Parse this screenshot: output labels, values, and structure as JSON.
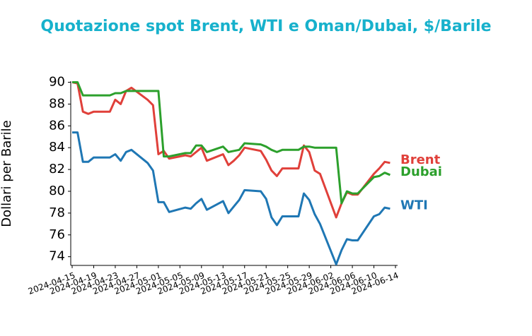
{
  "chart_data": {
    "type": "line",
    "title": "Quotazione spot Brent, WTI e Oman/Dubai, $/Barile",
    "y_label": "Dollari per Barile",
    "x": [
      "2024-04-15",
      "2024-04-16",
      "2024-04-17",
      "2024-04-18",
      "2024-04-19",
      "2024-04-22",
      "2024-04-23",
      "2024-04-24",
      "2024-04-25",
      "2024-04-26",
      "2024-04-29",
      "2024-04-30",
      "2024-05-01",
      "2024-05-02",
      "2024-05-03",
      "2024-05-06",
      "2024-05-07",
      "2024-05-08",
      "2024-05-09",
      "2024-05-10",
      "2024-05-13",
      "2024-05-14",
      "2024-05-15",
      "2024-05-16",
      "2024-05-17",
      "2024-05-20",
      "2024-05-21",
      "2024-05-22",
      "2024-05-23",
      "2024-05-24",
      "2024-05-27",
      "2024-05-28",
      "2024-05-29",
      "2024-05-30",
      "2024-05-31",
      "2024-06-03",
      "2024-06-04",
      "2024-06-05",
      "2024-06-06",
      "2024-06-07",
      "2024-06-10",
      "2024-06-11",
      "2024-06-12",
      "2024-06-13"
    ],
    "series": [
      {
        "name": "Brent",
        "color": "#e0403a",
        "values": [
          90,
          89.9,
          87.3,
          87.1,
          87.3,
          87.3,
          88.4,
          88,
          89.2,
          89.5,
          88.4,
          87.9,
          83.4,
          83.7,
          83,
          83.3,
          83.2,
          83.6,
          84,
          82.8,
          83.4,
          82.4,
          82.8,
          83.3,
          84,
          83.7,
          82.9,
          81.9,
          81.4,
          82.1,
          82.1,
          84.2,
          83.6,
          81.9,
          81.6,
          77.6,
          78.9,
          79.9,
          79.7,
          79.7,
          81.6,
          82.1,
          82.7,
          82.6
        ]
      },
      {
        "name": "Dubai",
        "color": "#2ca02c",
        "values": [
          90,
          90,
          88.8,
          88.8,
          88.8,
          88.8,
          89,
          89,
          89.2,
          89.2,
          89.2,
          89.2,
          89.2,
          83.2,
          83.2,
          83.5,
          83.5,
          84.2,
          84.2,
          83.6,
          84.1,
          83.6,
          83.7,
          83.8,
          84.4,
          84.3,
          84.1,
          83.8,
          83.6,
          83.8,
          83.8,
          84.1,
          84.1,
          84,
          84,
          84,
          78.9,
          80,
          79.8,
          79.8,
          81.3,
          81.4,
          81.7,
          81.5
        ]
      },
      {
        "name": "WTI",
        "color": "#1f77b4",
        "values": [
          85.4,
          85.4,
          82.7,
          82.7,
          83.1,
          83.1,
          83.4,
          82.8,
          83.6,
          83.8,
          82.6,
          81.9,
          79,
          79,
          78.1,
          78.5,
          78.4,
          78.9,
          79.3,
          78.3,
          79.1,
          78,
          78.6,
          79.2,
          80.1,
          80,
          79.3,
          77.6,
          76.9,
          77.7,
          77.7,
          79.8,
          79.2,
          77.9,
          77,
          73.3,
          74.6,
          75.6,
          75.5,
          75.5,
          77.7,
          77.9,
          78.5,
          78.4
        ]
      }
    ],
    "xlim": [
      "2024-04-15",
      "2024-06-14"
    ],
    "xticks": [
      "2024-04-15",
      "2024-04-19",
      "2024-04-23",
      "2024-04-27",
      "2024-05-01",
      "2024-05-05",
      "2024-05-09",
      "2024-05-13",
      "2024-05-17",
      "2024-05-21",
      "2024-05-25",
      "2024-05-29",
      "2024-06-02",
      "2024-06-06",
      "2024-06-10",
      "2024-06-14"
    ],
    "ylim": [
      73.2,
      90.1
    ],
    "yticks": [
      74,
      76,
      78,
      80,
      82,
      84,
      86,
      88,
      90
    ],
    "grid": false
  }
}
